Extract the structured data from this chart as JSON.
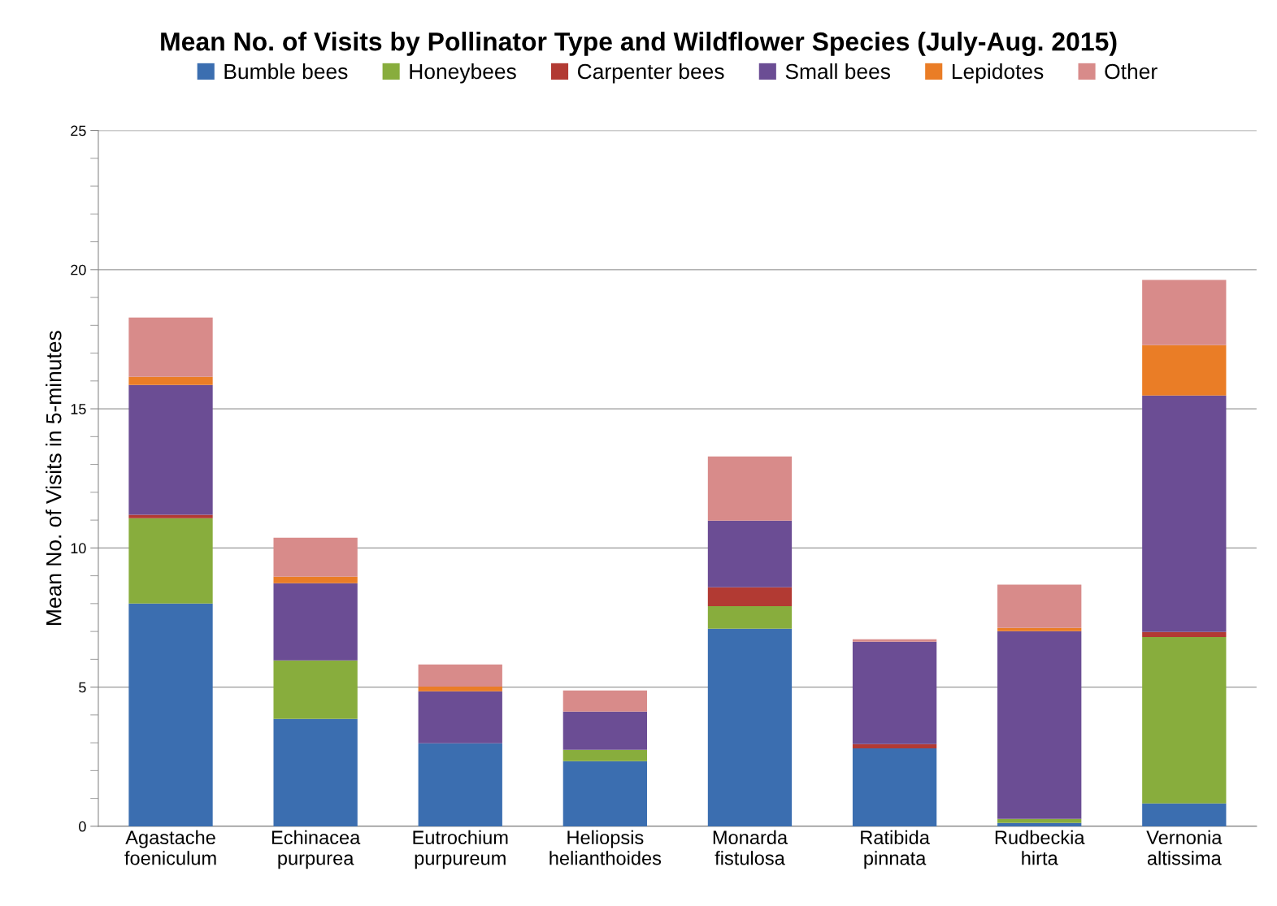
{
  "chart_data": {
    "type": "bar",
    "stacked": true,
    "title": "Mean No. of Visits by Pollinator Type and Wildflower Species (July-Aug. 2015)",
    "ylabel": "Mean No. of Visits in 5-minutes",
    "categories": [
      "Agastache\nfoeniculum",
      "Echinacea\npurpurea",
      "Eutrochium\npurpureum",
      "Heliopsis\nhelianthoides",
      "Monarda\nfistulosa",
      "Ratibida\npinnata",
      "Rudbeckia\nhirta",
      "Vernonia\naltissima"
    ],
    "series": [
      {
        "name": "Bumble bees",
        "color": "#3b6eb0",
        "values": [
          8.0,
          3.86,
          2.98,
          2.34,
          7.1,
          2.8,
          0.12,
          0.82
        ]
      },
      {
        "name": "Honeybees",
        "color": "#88ad3d",
        "values": [
          3.07,
          2.1,
          0,
          0.41,
          0.81,
          0,
          0.15,
          5.98
        ]
      },
      {
        "name": "Carpenter bees",
        "color": "#b23a33",
        "values": [
          0.12,
          0,
          0,
          0,
          0.68,
          0.15,
          0,
          0.18
        ]
      },
      {
        "name": "Small bees",
        "color": "#6b4d94",
        "values": [
          4.67,
          2.77,
          1.87,
          1.37,
          2.39,
          3.68,
          6.74,
          8.5
        ]
      },
      {
        "name": "Lepidotes",
        "color": "#ea7d26",
        "values": [
          0.29,
          0.24,
          0.17,
          0,
          0,
          0,
          0.12,
          1.81
        ]
      },
      {
        "name": "Other",
        "color": "#d88b8a",
        "values": [
          2.13,
          1.4,
          0.79,
          0.76,
          2.31,
          0.09,
          1.55,
          2.34
        ]
      }
    ],
    "ylim": [
      0,
      25
    ],
    "yticks": [
      0,
      5,
      10,
      15,
      20,
      25
    ],
    "grid": "y",
    "legend": "top"
  }
}
